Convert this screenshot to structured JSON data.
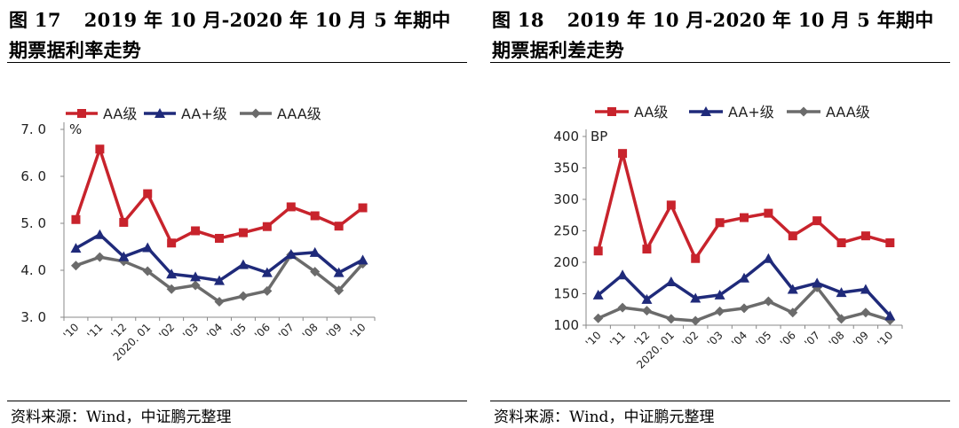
{
  "chart_data": [
    {
      "type": "line",
      "figure_label": "图 17",
      "title": "2019 年 10 月-2020 年 10 月 5 年期中期票据利率走势",
      "unit": "%",
      "categories": [
        "'10",
        "'11",
        "'12",
        "2020. 01",
        "'02",
        "'03",
        "'04",
        "'05",
        "'06",
        "'07",
        "'08",
        "'09",
        "'10"
      ],
      "ylim": [
        3.0,
        7.0
      ],
      "yticks": [
        "3. 0",
        "4. 0",
        "5. 0",
        "6. 0",
        "7. 0"
      ],
      "ytick_values": [
        3,
        4,
        5,
        6,
        7
      ],
      "series": [
        {
          "name": "AA级",
          "marker": "square",
          "color": "#c8232c",
          "values": [
            5.08,
            6.58,
            5.02,
            5.63,
            4.58,
            4.84,
            4.68,
            4.8,
            4.93,
            5.35,
            5.16,
            4.94,
            5.33
          ]
        },
        {
          "name": "AA+级",
          "marker": "triangle",
          "color": "#1f2a7a",
          "values": [
            4.47,
            4.76,
            4.29,
            4.48,
            3.92,
            3.86,
            3.78,
            4.12,
            3.95,
            4.34,
            4.38,
            3.95,
            4.22
          ]
        },
        {
          "name": "AAA级",
          "marker": "diamond",
          "color": "#6b6b6b",
          "values": [
            4.1,
            4.28,
            4.19,
            3.98,
            3.6,
            3.68,
            3.33,
            3.45,
            3.56,
            4.33,
            3.97,
            3.57,
            4.14
          ]
        }
      ],
      "source": "资料来源：Wind，中证鹏元整理"
    },
    {
      "type": "line",
      "figure_label": "图 18",
      "title": "2019 年 10 月-2020 年 10 月 5 年期中期票据利差走势",
      "unit": "BP",
      "categories": [
        "'10",
        "'11",
        "'12",
        "2020. 01",
        "'02",
        "'03",
        "'04",
        "'05",
        "'06",
        "'07",
        "'08",
        "'09",
        "'10"
      ],
      "ylim": [
        100,
        400
      ],
      "yticks": [
        "100",
        "150",
        "200",
        "250",
        "300",
        "350",
        "400"
      ],
      "ytick_values": [
        100,
        150,
        200,
        250,
        300,
        350,
        400
      ],
      "series": [
        {
          "name": "AA级",
          "marker": "square",
          "color": "#c8232c",
          "values": [
            218,
            373,
            221,
            291,
            206,
            263,
            271,
            278,
            242,
            266,
            231,
            242,
            231
          ]
        },
        {
          "name": "AA+级",
          "marker": "triangle",
          "color": "#1f2a7a",
          "values": [
            148,
            180,
            141,
            169,
            143,
            148,
            175,
            206,
            157,
            167,
            152,
            157,
            115
          ]
        },
        {
          "name": "AAA级",
          "marker": "diamond",
          "color": "#6b6b6b",
          "values": [
            111,
            128,
            123,
            110,
            107,
            122,
            127,
            138,
            120,
            160,
            110,
            120,
            108
          ]
        }
      ],
      "source": "资料来源：Wind，中证鹏元整理"
    }
  ]
}
